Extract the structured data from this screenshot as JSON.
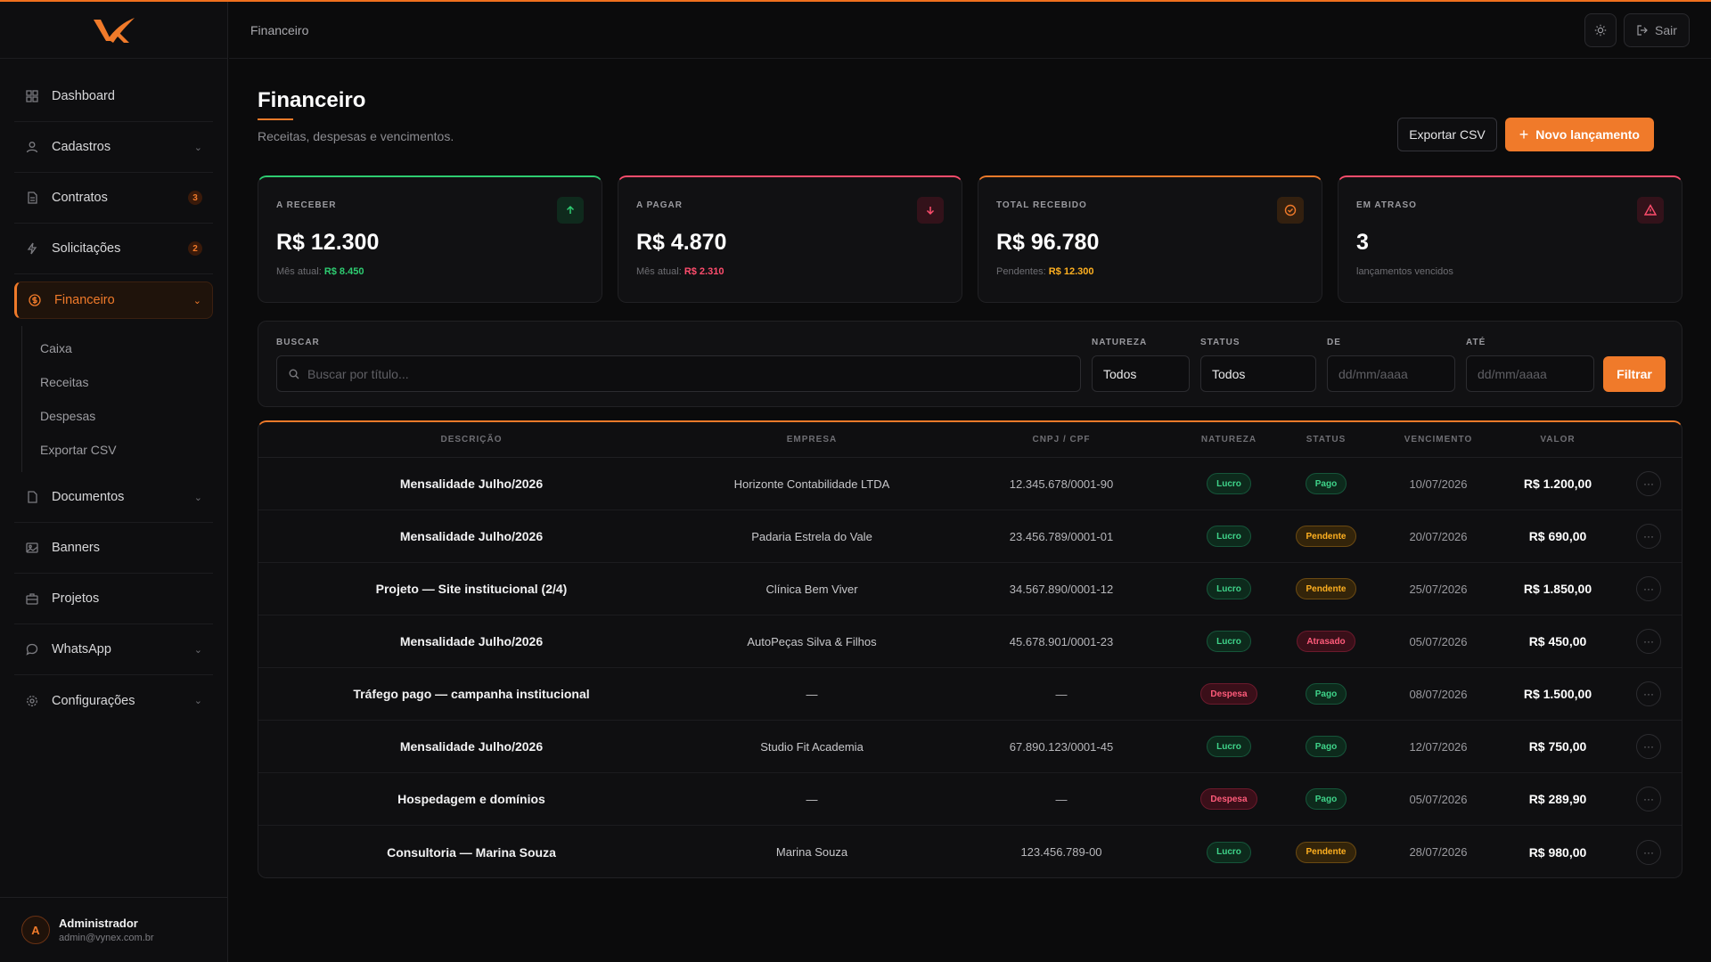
{
  "brand": {
    "accent": "#f07a2a"
  },
  "header": {
    "breadcrumb": "Financeiro",
    "theme_icon": "sun-icon",
    "logout_label": "Sair"
  },
  "sidebar": {
    "items": [
      {
        "label": "Dashboard",
        "icon": "grid-icon"
      },
      {
        "label": "Cadastros",
        "icon": "user-icon"
      },
      {
        "label": "Contratos",
        "icon": "file-icon",
        "badge": "3"
      },
      {
        "label": "Solicitações",
        "icon": "bolt-icon",
        "badge": "2"
      },
      {
        "label": "Financeiro",
        "icon": "dollar-icon"
      },
      {
        "label": "Documentos",
        "icon": "document-icon"
      },
      {
        "label": "Banners",
        "icon": "image-icon"
      },
      {
        "label": "Projetos",
        "icon": "briefcase-icon"
      },
      {
        "label": "WhatsApp",
        "icon": "chat-icon"
      },
      {
        "label": "Configurações",
        "icon": "gear-icon"
      }
    ],
    "sub": [
      "Caixa",
      "Receitas",
      "Despesas",
      "Exportar CSV"
    ]
  },
  "user": {
    "initial": "A",
    "name": "Administrador",
    "email": "admin@vynex.com.br"
  },
  "page": {
    "title": "Financeiro",
    "subtitle": "Receitas, despesas e vencimentos.",
    "export_label": "Exportar CSV",
    "new_label": "Novo lançamento"
  },
  "cards": [
    {
      "label": "A RECEBER",
      "value": "R$ 12.300",
      "sub_label": "Mês atual:",
      "sub_value": "R$ 8.450",
      "color": "#2ecc71",
      "icon": "arrow-up-icon"
    },
    {
      "label": "A PAGAR",
      "value": "R$ 4.870",
      "sub_label": "Mês atual:",
      "sub_value": "R$ 2.310",
      "color": "#ff4d6d",
      "icon": "arrow-down-icon"
    },
    {
      "label": "TOTAL RECEBIDO",
      "value": "R$ 96.780",
      "sub_label": "Pendentes:",
      "sub_value": "R$ 12.300",
      "color": "#f07a2a",
      "icon": "check-circle-icon"
    },
    {
      "label": "EM ATRASO",
      "value": "3",
      "sub_label": "lançamentos vencidos",
      "sub_value": "",
      "color": "#ff4d6d",
      "icon": "alert-icon"
    }
  ],
  "filters": {
    "search_label": "BUSCAR",
    "search_placeholder": "Buscar por título...",
    "natureza_label": "NATUREZA",
    "natureza_value": "Todos",
    "status_label": "STATUS",
    "status_value": "Todos",
    "de_label": "DE",
    "de_placeholder": "dd/mm/aaaa",
    "ate_label": "ATÉ",
    "ate_placeholder": "dd/mm/aaaa",
    "filter_label": "Filtrar"
  },
  "table": {
    "headers": [
      "DESCRIÇÃO",
      "EMPRESA",
      "CNPJ / CPF",
      "NATUREZA",
      "STATUS",
      "VENCIMENTO",
      "VALOR"
    ],
    "rows": [
      {
        "descricao": "Mensalidade Julho/2026",
        "empresa": "Horizonte Contabilidade LTDA",
        "doc": "12.345.678/0001-90",
        "natureza": "Lucro",
        "status": "Pago",
        "vencimento": "10/07/2026",
        "valor": "R$ 1.200,00"
      },
      {
        "descricao": "Mensalidade Julho/2026",
        "empresa": "Padaria Estrela do Vale",
        "doc": "23.456.789/0001-01",
        "natureza": "Lucro",
        "status": "Pendente",
        "vencimento": "20/07/2026",
        "valor": "R$ 690,00"
      },
      {
        "descricao": "Projeto — Site institucional (2/4)",
        "empresa": "Clínica Bem Viver",
        "doc": "34.567.890/0001-12",
        "natureza": "Lucro",
        "status": "Pendente",
        "vencimento": "25/07/2026",
        "valor": "R$ 1.850,00"
      },
      {
        "descricao": "Mensalidade Julho/2026",
        "empresa": "AutoPeças Silva & Filhos",
        "doc": "45.678.901/0001-23",
        "natureza": "Lucro",
        "status": "Atrasado",
        "vencimento": "05/07/2026",
        "valor": "R$ 450,00"
      },
      {
        "descricao": "Tráfego pago — campanha institucional",
        "empresa": "—",
        "doc": "—",
        "natureza": "Despesa",
        "status": "Pago",
        "vencimento": "08/07/2026",
        "valor": "R$ 1.500,00"
      },
      {
        "descricao": "Mensalidade Julho/2026",
        "empresa": "Studio Fit Academia",
        "doc": "67.890.123/0001-45",
        "natureza": "Lucro",
        "status": "Pago",
        "vencimento": "12/07/2026",
        "valor": "R$ 750,00"
      },
      {
        "descricao": "Hospedagem e domínios",
        "empresa": "—",
        "doc": "—",
        "natureza": "Despesa",
        "status": "Pago",
        "vencimento": "05/07/2026",
        "valor": "R$ 289,90"
      },
      {
        "descricao": "Consultoria — Marina Souza",
        "empresa": "Marina Souza",
        "doc": "123.456.789-00",
        "natureza": "Lucro",
        "status": "Pendente",
        "vencimento": "28/07/2026",
        "valor": "R$ 980,00"
      }
    ]
  }
}
